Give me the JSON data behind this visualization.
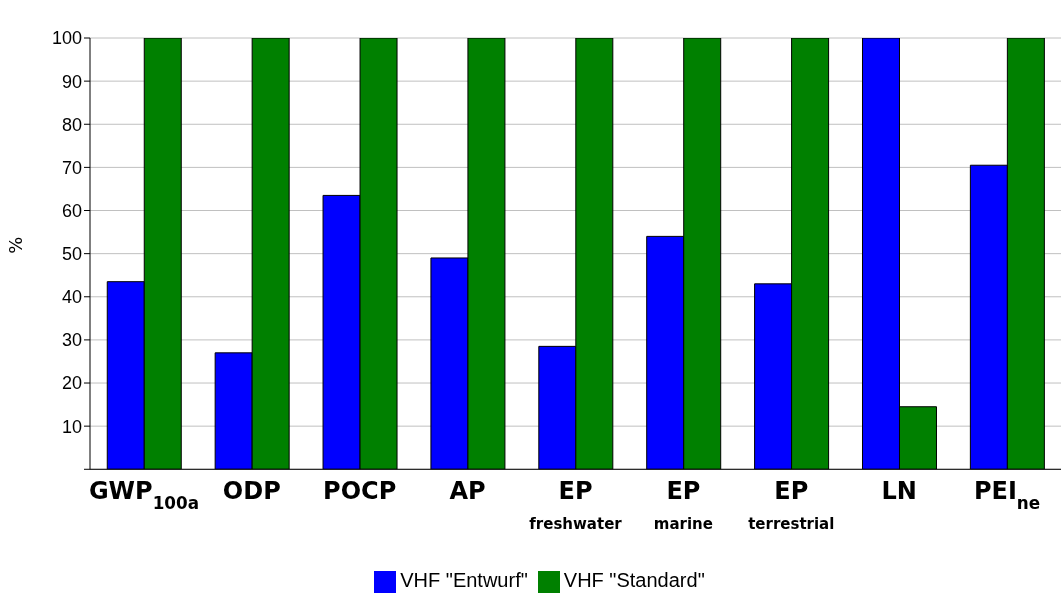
{
  "chart_data": {
    "type": "bar",
    "ylabel": "%",
    "categories": [
      "GWP$_{100a}$",
      "ODP",
      "POCP",
      "AP",
      "EP\nfreshwater",
      "EP\nmarine",
      "EP\nterrestrial",
      "LN",
      "PEI$_{ne}$"
    ],
    "series": [
      {
        "name": "VHF \"Entwurf\"",
        "color": "#0000ff",
        "values": [
          43.5,
          27,
          63.5,
          49,
          28.5,
          54,
          43,
          100,
          70.5
        ]
      },
      {
        "name": "VHF \"Standard\"",
        "color": "#008000",
        "values": [
          100,
          100,
          100,
          100,
          100,
          100,
          100,
          14.5,
          100
        ]
      }
    ],
    "ylim": [
      0,
      100
    ],
    "yticks": [
      {
        "value": 0,
        "label": null
      },
      10,
      20,
      30,
      40,
      50,
      60,
      70,
      80,
      90,
      100
    ],
    "grid": "y",
    "legend": "bottom"
  }
}
